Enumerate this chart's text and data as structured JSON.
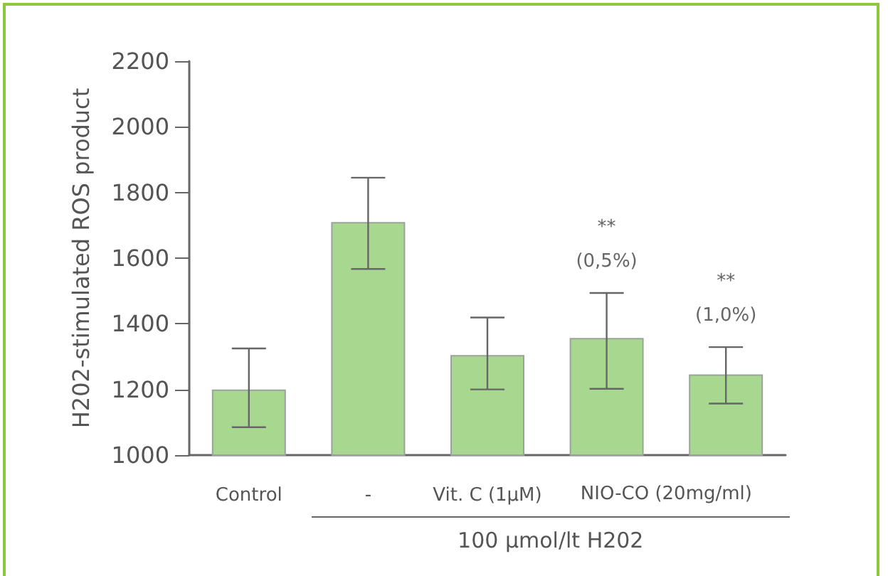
{
  "chart_data": {
    "type": "bar",
    "ylabel": "H202-stimulated ROS product",
    "xlabel": "100 µmol/lt H202",
    "categories": [
      "Control",
      "-",
      "Vit. C (1µM)",
      null,
      null
    ],
    "values": [
      1200,
      1710,
      1305,
      1357,
      1246
    ],
    "errors": [
      [
        1085,
        1325
      ],
      [
        1567,
        1845
      ],
      [
        1200,
        1419
      ],
      [
        1202,
        1494
      ],
      [
        1157,
        1329
      ]
    ],
    "annotations": [
      "NIO-CO (20mg/ml)",
      "**\n(0,5%)",
      "**\n(1,0%)"
    ],
    "color": "#a8d88f",
    "ylim": [
      1000,
      2200
    ],
    "yticks": [
      1000,
      1200,
      1400,
      1600,
      1800,
      2000,
      2200
    ],
    "grid": false
  }
}
